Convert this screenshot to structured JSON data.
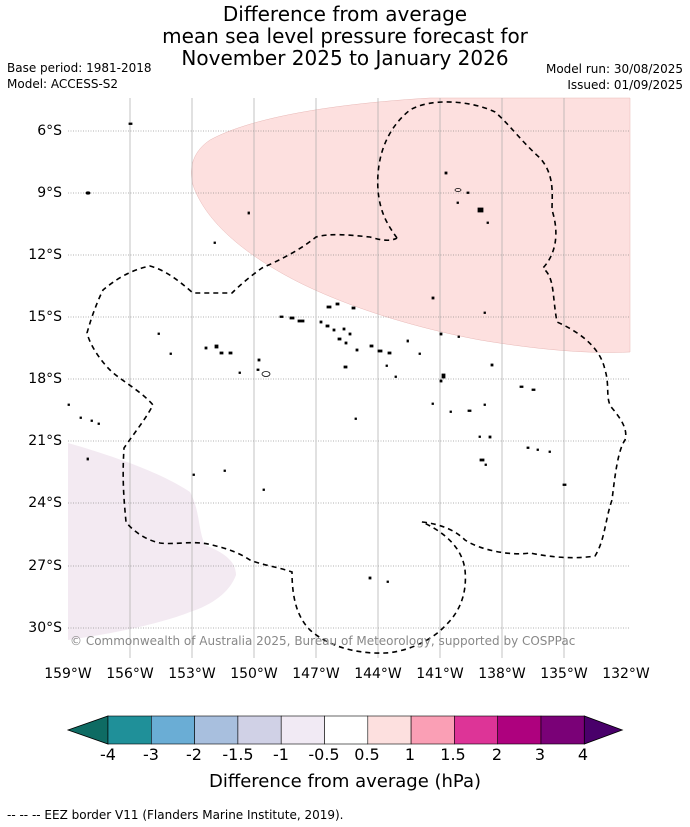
{
  "title": {
    "line1": "Difference from average",
    "line2": "mean sea level pressure forecast for",
    "line3": "November 2025 to January 2026"
  },
  "meta": {
    "base_period": "Base period: 1981-2018",
    "model": "Model: ACCESS-S2",
    "model_run": "Model run: 30/08/2025",
    "issued": "Issued: 01/09/2025"
  },
  "map": {
    "lat_labels": [
      "6°S",
      "9°S",
      "12°S",
      "15°S",
      "18°S",
      "21°S",
      "24°S",
      "27°S",
      "30°S"
    ],
    "lon_labels": [
      "159°W",
      "156°W",
      "153°W",
      "150°W",
      "147°W",
      "144°W",
      "141°W",
      "138°W",
      "135°W",
      "132°W"
    ],
    "copyright": "© Commonwealth of Australia 2025, Bureau of Meteorology, supported by COSPPac",
    "positive_anomaly_color": "#fde0df",
    "negative_anomaly_color": "#f3eaf2"
  },
  "colorbar": {
    "ticks": [
      "-4",
      "-3",
      "-2",
      "-1.5",
      "-1",
      "-0.5",
      "0.5",
      "1",
      "1.5",
      "2",
      "3",
      "4"
    ],
    "colors": [
      "#0e6b63",
      "#1f9099",
      "#6aadd5",
      "#a8bfde",
      "#d0d1e6",
      "#f1eaf4",
      "#ffffff",
      "#fde0df",
      "#fa9fb5",
      "#dd3497",
      "#ae017e",
      "#7a0177",
      "#49006a"
    ],
    "title": "Difference from average (hPa)"
  },
  "footer": {
    "legend": "--  --  -- EEZ border V11 (Flanders Marine Institute, 2019)."
  }
}
